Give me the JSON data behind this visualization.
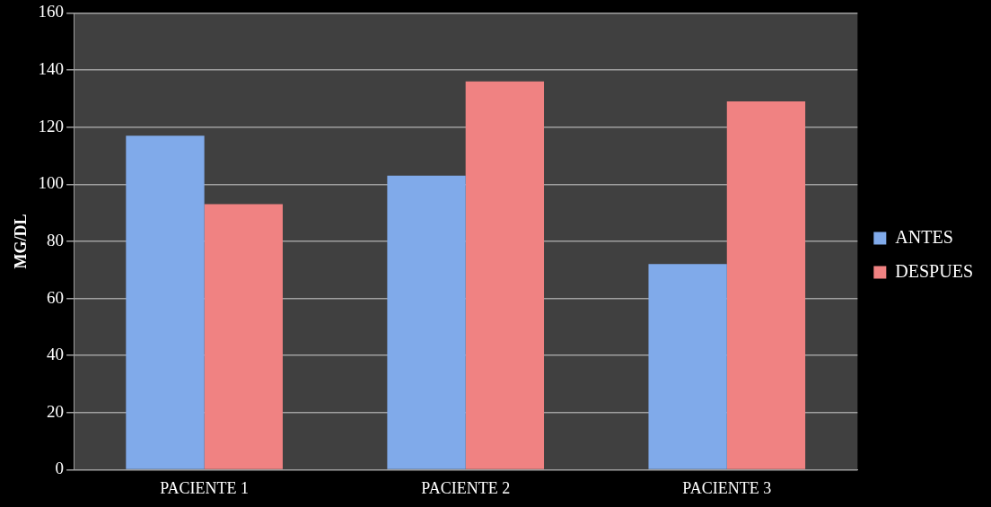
{
  "chart_data": {
    "type": "bar",
    "ylabel": "MG/DL",
    "categories": [
      "PACIENTE 1",
      "PACIENTE 2",
      "PACIENTE 3"
    ],
    "series": [
      {
        "name": "ANTES",
        "color": "#80aaea",
        "values": [
          117,
          103,
          72
        ]
      },
      {
        "name": "DESPUES",
        "color": "#f08282",
        "values": [
          93,
          136,
          129
        ]
      }
    ],
    "ylim": [
      0,
      160
    ],
    "yticks": [
      0,
      20,
      40,
      60,
      80,
      100,
      120,
      140,
      160
    ],
    "grid": "y",
    "legend": "right"
  }
}
